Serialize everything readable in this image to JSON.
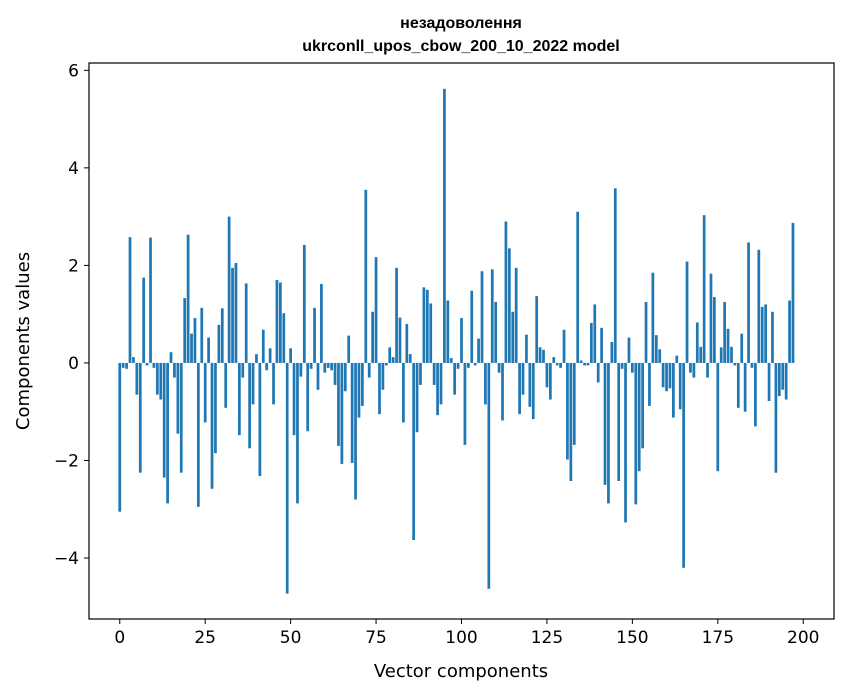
{
  "chart_data": {
    "type": "bar",
    "title_line1": "незадоволення",
    "title_line2": "ukrconll_upos_cbow_200_10_2022 model",
    "xlabel": "Vector components",
    "ylabel": "Components values",
    "xlim": [
      -9,
      209
    ],
    "ylim": [
      -5.25,
      6.15
    ],
    "xticks": [
      0,
      25,
      50,
      75,
      100,
      125,
      150,
      175,
      200
    ],
    "yticks": [
      -4,
      -2,
      0,
      2,
      4,
      6
    ],
    "ytick_labels": [
      "−4",
      "−2",
      "0",
      "2",
      "4",
      "6"
    ],
    "grid": false,
    "bar_color": "#1f77b4",
    "values": [
      -3.05,
      -0.1,
      -0.12,
      2.58,
      0.12,
      -0.65,
      -2.25,
      1.75,
      -0.05,
      2.57,
      -0.1,
      -0.65,
      -0.75,
      -2.35,
      -2.88,
      0.22,
      -0.3,
      -1.45,
      -2.25,
      1.33,
      2.63,
      0.6,
      0.92,
      -2.95,
      1.13,
      -1.22,
      0.52,
      -2.58,
      -1.85,
      0.78,
      1.12,
      -0.92,
      3.0,
      1.95,
      2.05,
      -1.48,
      -0.3,
      1.63,
      -1.75,
      -0.85,
      0.18,
      -2.32,
      0.68,
      -0.15,
      0.3,
      -0.85,
      1.7,
      1.65,
      1.02,
      -4.73,
      0.3,
      -1.48,
      -2.88,
      -0.28,
      2.42,
      -1.4,
      -0.12,
      1.13,
      -0.55,
      1.62,
      -0.2,
      -0.1,
      -0.15,
      -0.45,
      -1.7,
      -2.07,
      -0.58,
      0.56,
      -2.05,
      -2.8,
      -1.12,
      -0.88,
      3.55,
      -0.3,
      1.05,
      2.17,
      -1.05,
      -0.55,
      -0.05,
      0.32,
      0.12,
      1.95,
      0.93,
      -1.22,
      0.8,
      0.18,
      -3.63,
      -1.42,
      -0.45,
      1.55,
      1.5,
      1.22,
      -0.45,
      -1.07,
      -0.85,
      5.62,
      1.28,
      0.1,
      -0.65,
      -0.12,
      0.92,
      -1.68,
      -0.1,
      1.48,
      -0.05,
      0.5,
      1.88,
      -0.85,
      -4.63,
      1.92,
      1.25,
      -0.2,
      -1.18,
      2.9,
      2.35,
      1.05,
      1.95,
      -1.05,
      -0.65,
      0.58,
      -0.9,
      -1.15,
      1.37,
      0.32,
      0.27,
      -0.5,
      -0.75,
      0.12,
      -0.05,
      -0.1,
      0.68,
      -1.98,
      -2.42,
      -1.68,
      3.1,
      0.05,
      -0.05,
      -0.05,
      0.82,
      1.2,
      -0.4,
      0.72,
      -2.5,
      -2.88,
      0.43,
      3.58,
      -2.42,
      -0.12,
      -3.27,
      0.52,
      -0.2,
      -2.9,
      -2.22,
      -1.75,
      1.25,
      -0.88,
      1.85,
      0.57,
      0.28,
      -0.5,
      -0.58,
      -0.52,
      -1.12,
      0.15,
      -0.95,
      -4.2,
      2.08,
      -0.2,
      -0.3,
      0.83,
      0.33,
      3.03,
      -0.3,
      1.83,
      1.35,
      -2.22,
      0.32,
      1.25,
      0.7,
      0.33,
      -0.05,
      -0.92,
      0.6,
      -1.0,
      2.47,
      -0.1,
      -1.3,
      2.32,
      1.15,
      1.2,
      -0.78,
      1.05,
      -2.25,
      -0.68,
      -0.55,
      -0.75,
      1.28,
      2.87
    ]
  }
}
